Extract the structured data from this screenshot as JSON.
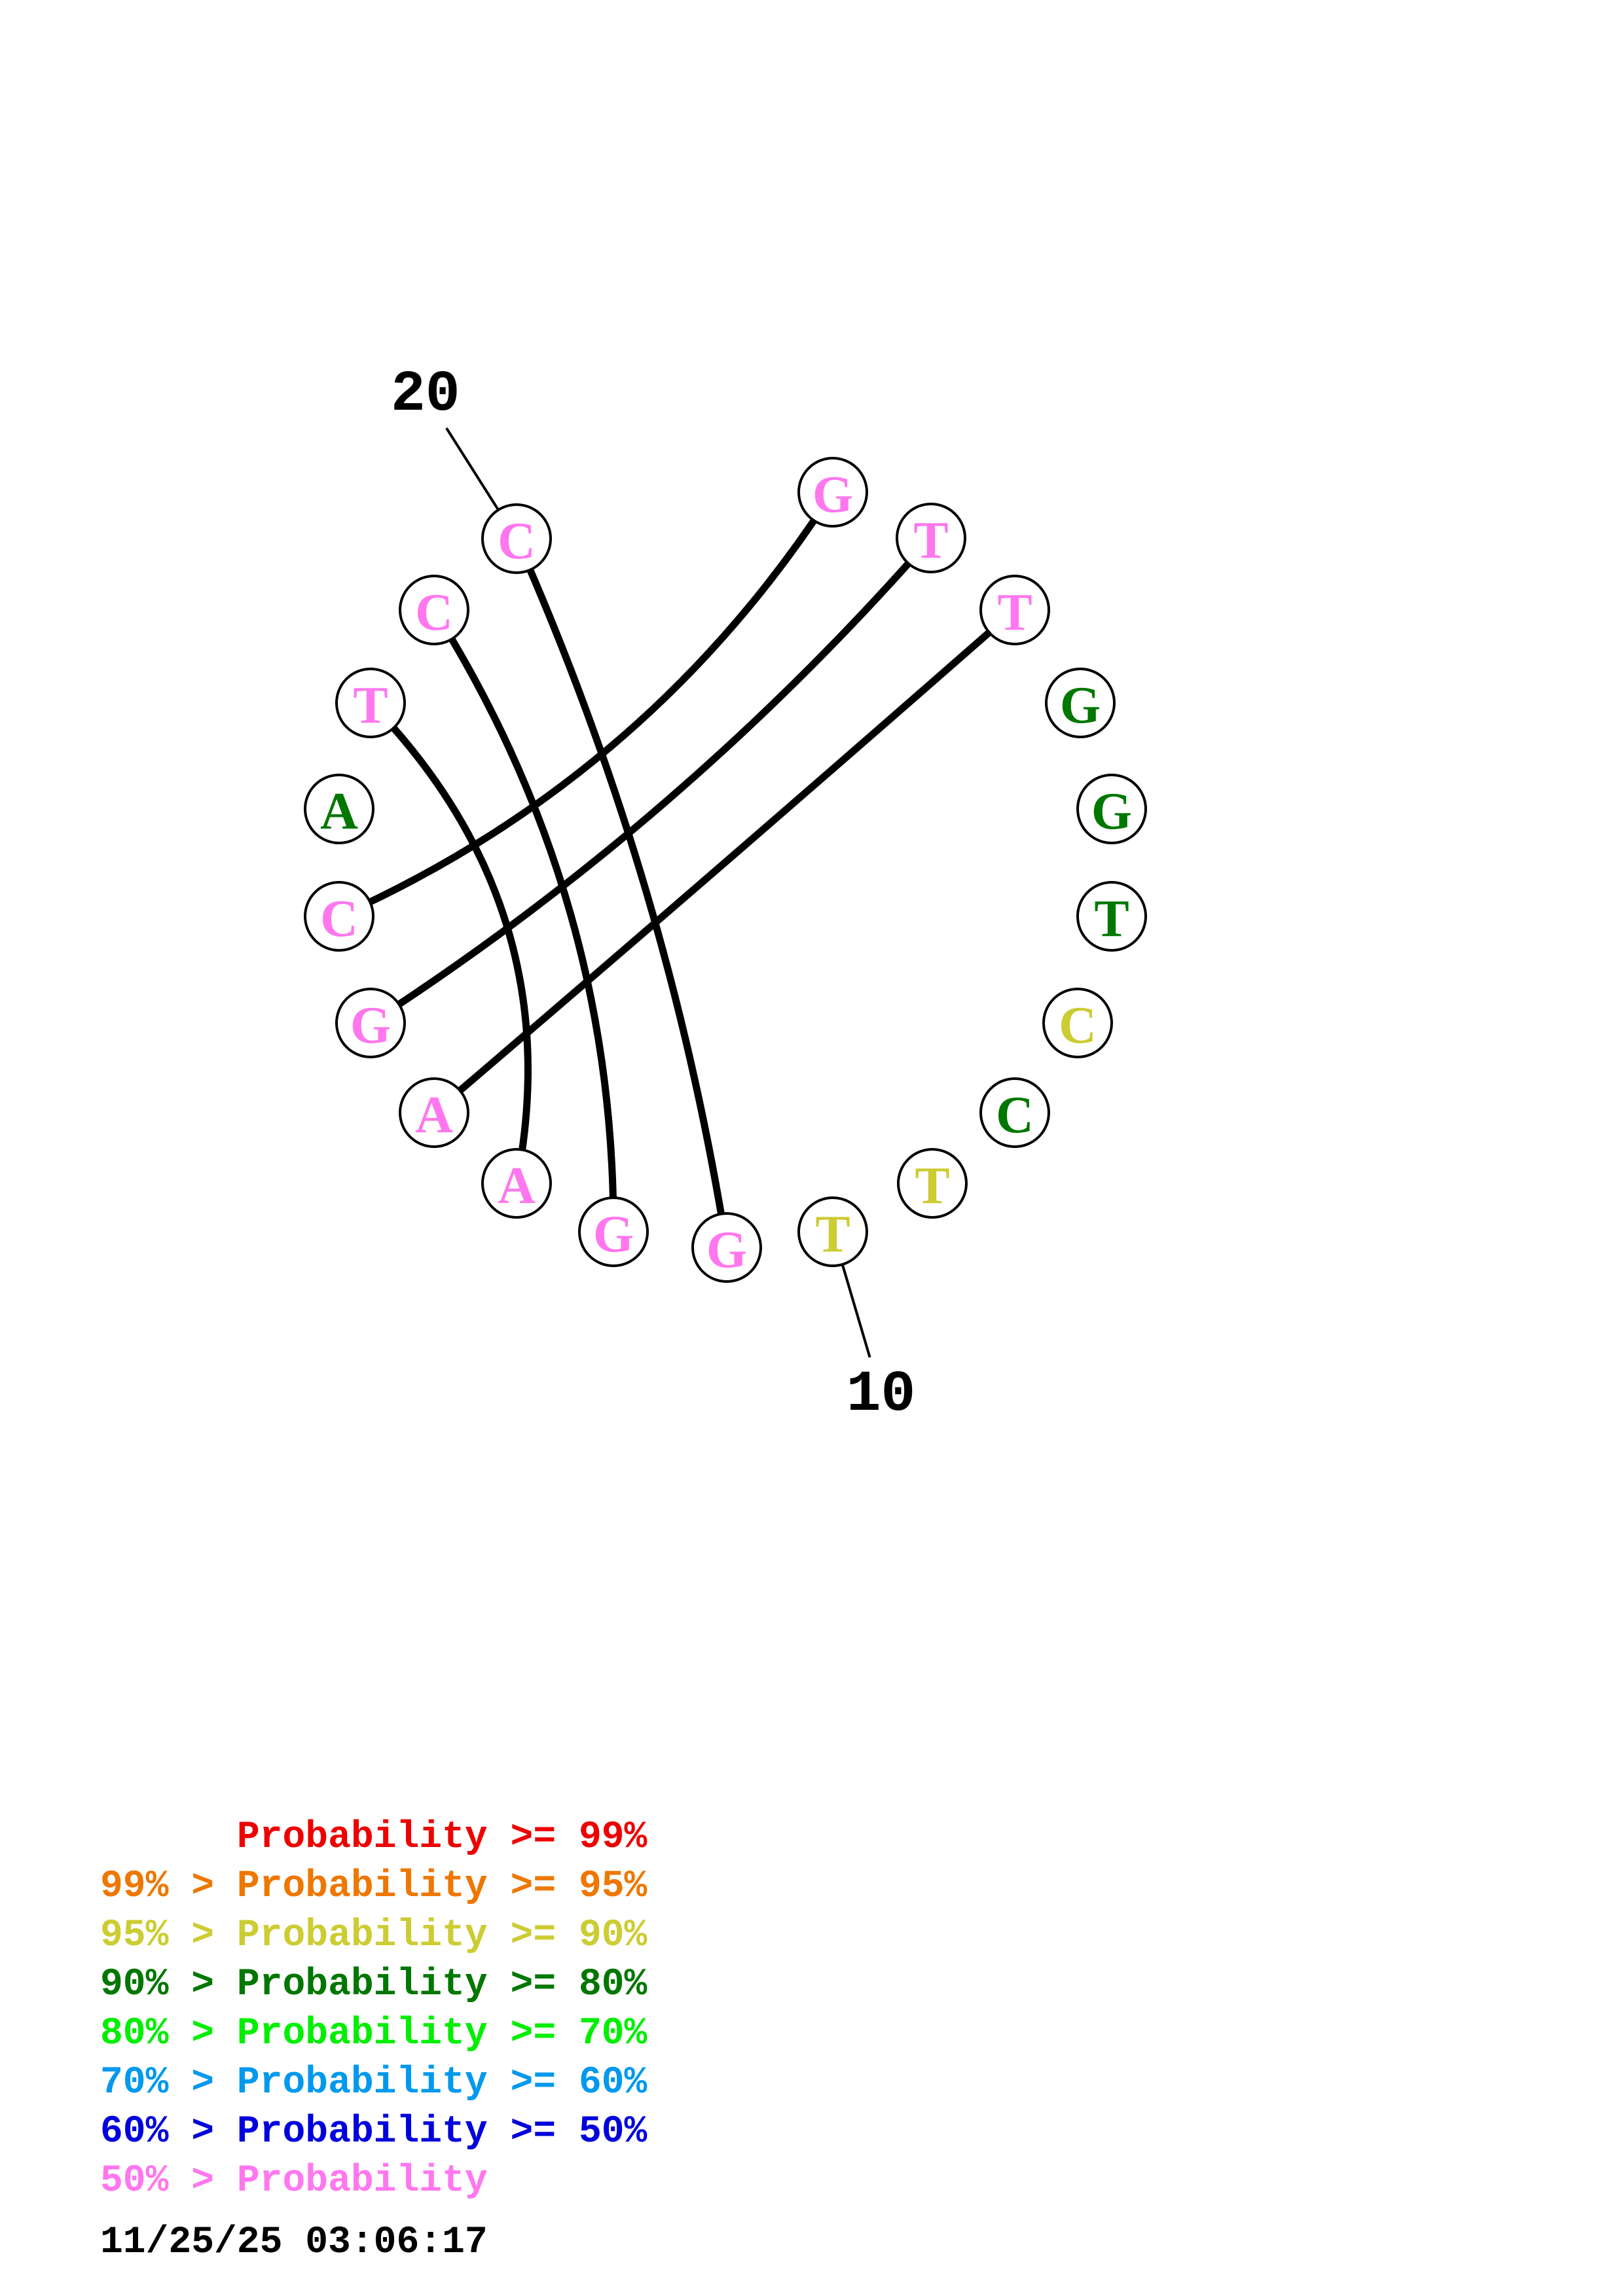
{
  "diagram": {
    "position_labels": [
      {
        "text": "20",
        "index": 10
      },
      {
        "text": "10",
        "index": 0
      }
    ],
    "bases": [
      {
        "letter": "T",
        "color": "#cccc33"
      },
      {
        "letter": "T",
        "color": "#cccc33"
      },
      {
        "letter": "C",
        "color": "#007700"
      },
      {
        "letter": "C",
        "color": "#cccc33"
      },
      {
        "letter": "T",
        "color": "#007700"
      },
      {
        "letter": "G",
        "color": "#007700"
      },
      {
        "letter": "G",
        "color": "#007700"
      },
      {
        "letter": "T",
        "color": "#ff77ee"
      },
      {
        "letter": "T",
        "color": "#ff77ee"
      },
      {
        "letter": "G",
        "color": "#ff77ee"
      },
      {
        "letter": "C",
        "color": "#ff77ee"
      },
      {
        "letter": "C",
        "color": "#ff77ee"
      },
      {
        "letter": "T",
        "color": "#ff77ee"
      },
      {
        "letter": "A",
        "color": "#007700"
      },
      {
        "letter": "C",
        "color": "#ff77ee"
      },
      {
        "letter": "G",
        "color": "#ff77ee"
      },
      {
        "letter": "A",
        "color": "#ff77ee"
      },
      {
        "letter": "A",
        "color": "#ff77ee"
      },
      {
        "letter": "G",
        "color": "#ff77ee"
      },
      {
        "letter": "G",
        "color": "#ff77ee"
      }
    ],
    "pairs": [
      [
        9,
        14
      ],
      [
        8,
        15
      ],
      [
        7,
        16
      ],
      [
        12,
        17
      ],
      [
        11,
        18
      ],
      [
        10,
        19
      ]
    ]
  },
  "legend": [
    {
      "prefix": "",
      "label": "Probability",
      "suffix": " >= 99%",
      "color": "#ee0000"
    },
    {
      "prefix": "99% > ",
      "label": "Probability",
      "suffix": " >= 95%",
      "color": "#ee7700"
    },
    {
      "prefix": "95% > ",
      "label": "Probability",
      "suffix": " >= 90%",
      "color": "#cccc33"
    },
    {
      "prefix": "90% > ",
      "label": "Probability",
      "suffix": " >= 80%",
      "color": "#007700"
    },
    {
      "prefix": "80% > ",
      "label": "Probability",
      "suffix": " >= 70%",
      "color": "#00ee00"
    },
    {
      "prefix": "70% > ",
      "label": "Probability",
      "suffix": " >= 60%",
      "color": "#0099ee"
    },
    {
      "prefix": "60% > ",
      "label": "Probability",
      "suffix": " >= 50%",
      "color": "#0000dd"
    },
    {
      "prefix": "50% > ",
      "label": "Probability",
      "suffix": "",
      "color": "#ff77ee"
    }
  ],
  "timestamp": "11/25/25 03:06:17"
}
